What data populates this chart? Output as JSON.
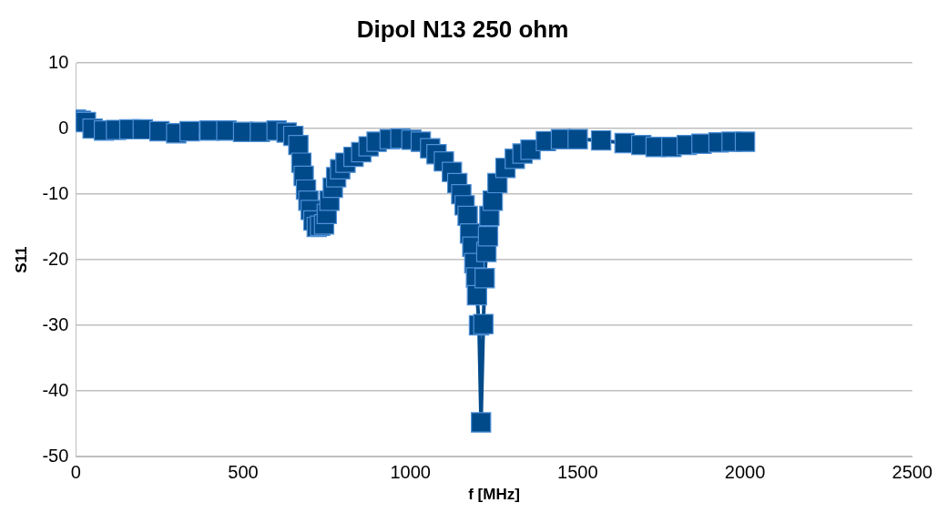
{
  "chart_data": {
    "type": "line",
    "title": "Dipol N13 250 ohm",
    "xlabel": "f [MHz]",
    "ylabel": "S11",
    "xlim": [
      0,
      2500
    ],
    "xticks": [
      0,
      500,
      1000,
      1500,
      2000,
      2500
    ],
    "ylim": [
      -50,
      10
    ],
    "yticks": [
      -50,
      -40,
      -30,
      -20,
      -10,
      0,
      10
    ],
    "grid": "y",
    "legend": false,
    "marker": "square",
    "line_style": "solid",
    "series": [
      {
        "color": "#004a8a",
        "x": [
          0,
          15,
          30,
          50,
          84,
          120,
          160,
          200,
          250,
          300,
          340,
          400,
          450,
          500,
          550,
          600,
          630,
          650,
          665,
          674,
          681,
          688,
          695,
          702,
          710,
          720,
          730,
          742,
          750,
          758,
          768,
          778,
          790,
          806,
          830,
          853,
          875,
          899,
          938,
          970,
          1003,
          1031,
          1059,
          1078,
          1100,
          1124,
          1140,
          1152,
          1162,
          1171,
          1178,
          1185,
          1191,
          1196,
          1199,
          1205,
          1211,
          1218,
          1222,
          1227,
          1232,
          1236,
          1246,
          1260,
          1284,
          1312,
          1335,
          1359,
          1405,
          1450,
          1500,
          1570,
          1640,
          1690,
          1733,
          1780,
          1826,
          1870,
          1921,
          1960,
          2000
        ],
        "values": [
          1.4,
          1.2,
          1.0,
          0,
          -0.3,
          -0.2,
          -0.1,
          -0.1,
          -0.4,
          -0.7,
          -0.4,
          -0.3,
          -0.3,
          -0.5,
          -0.5,
          -0.3,
          -0.6,
          -1.1,
          -2.5,
          -5.2,
          -7.2,
          -9.3,
          -11,
          -12.4,
          -14,
          -15,
          -14.8,
          -14.6,
          -13,
          -11,
          -9,
          -7.4,
          -6.2,
          -5.2,
          -4.3,
          -3.6,
          -2.7,
          -2,
          -1.6,
          -1.5,
          -1.7,
          -2,
          -3,
          -3.9,
          -5,
          -6.6,
          -8.3,
          -10,
          -11.7,
          -13.3,
          -16,
          -18,
          -20.5,
          -22.7,
          -25.4,
          -30,
          -44.8,
          -29.8,
          -22.8,
          -18.8,
          -16.4,
          -13.3,
          -11,
          -8.3,
          -6,
          -4.6,
          -3.8,
          -3.2,
          -1.9,
          -1.6,
          -1.6,
          -1.8,
          -2.2,
          -2.5,
          -2.8,
          -2.8,
          -2.5,
          -2.3,
          -2.1,
          -2,
          -2
        ]
      }
    ]
  }
}
